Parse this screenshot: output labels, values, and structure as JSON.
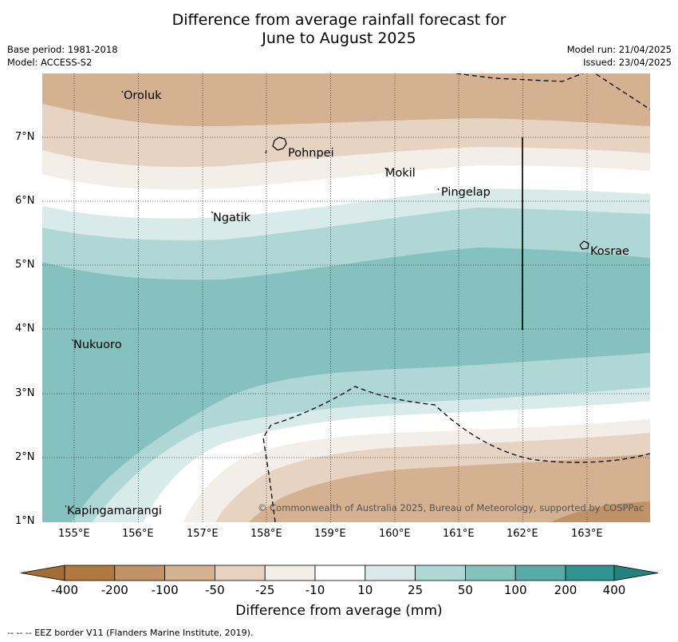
{
  "title": {
    "line1": "Difference from average rainfall forecast for",
    "line2": "June to August 2025"
  },
  "meta": {
    "base_period": "Base period: 1981-2018",
    "model": "Model: ACCESS-S2",
    "model_run": "Model run: 21/04/2025",
    "issued": "Issued: 23/04/2025"
  },
  "axes": {
    "x_ticks": [
      "155°E",
      "156°E",
      "157°E",
      "158°E",
      "159°E",
      "160°E",
      "161°E",
      "162°E",
      "163°E"
    ],
    "y_ticks": [
      "7°N",
      "6°N",
      "5°N",
      "4°N",
      "3°N",
      "2°N",
      "1°N"
    ]
  },
  "places": [
    {
      "name": "Oroluk"
    },
    {
      "name": "Pohnpei"
    },
    {
      "name": "Mokil"
    },
    {
      "name": "Pingelap"
    },
    {
      "name": "Ngatik"
    },
    {
      "name": "Kosrae"
    },
    {
      "name": "Nukuoro"
    },
    {
      "name": "Kapingamarangi"
    }
  ],
  "copyright": "© Commonwealth of Australia 2025, Bureau of Meteorology, supported by COSPPac",
  "colorbar": {
    "labels": [
      "-400",
      "-200",
      "-100",
      "-50",
      "-25",
      "-10",
      "10",
      "25",
      "50",
      "100",
      "200",
      "400"
    ],
    "colors": [
      "#b07941",
      "#c09268",
      "#d3b191",
      "#e6d3c2",
      "#f3eee8",
      "#ffffff",
      "#d8ebea",
      "#afd7d6",
      "#85c1bf",
      "#5aaaa7",
      "#2f9490"
    ],
    "title": "Difference from average (mm)"
  },
  "footer": "--  --  -- EEZ border V11 (Flanders Marine Institute, 2019)."
}
